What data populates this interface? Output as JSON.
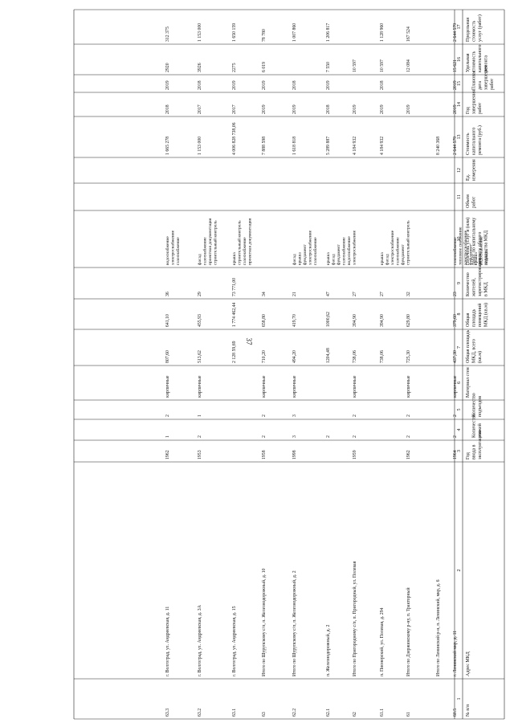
{
  "page_number": "37",
  "headers": [
    "№ п/п",
    "Адрес МКД",
    "Год ввода в эксплуатацию",
    "Количество этажей",
    "Количество подъездов",
    "Материал стен",
    "Общая площадь МКД, всего (кв.м)",
    "Общая площадь помещений МКД (кв.м)",
    "Количество жителей, зарегистрированных в МКД",
    "Перечень услуг и (или) работ по капитальному ремонту общего имущества МКД",
    "Объем работ",
    "Ед. измерения",
    "Стоимость капитального ремонта (руб.)",
    "Год завершения работ",
    "Плановая дата завершения работ",
    "Удельная стоимость капитального ремонта",
    "Предельная стоимость услуг (работ)"
  ],
  "col_numbers": [
    "1",
    "2",
    "3",
    "4",
    "5",
    "6",
    "7",
    "8",
    "9",
    "10",
    "11",
    "12",
    "13",
    "14",
    "15",
    "16",
    "17"
  ],
  "rows": [
    {
      "no": "60.5",
      "address": "г. Ленинский мкр, д. 11",
      "year": "1964",
      "floors": "2",
      "entr": "2",
      "wall": "кирпичные",
      "area": "437,30",
      "area2": "379,60",
      "people": "23",
      "works": "газоснабжение; тепловое снабжение; электроснабжение; фундамент; крыша; водоснабжение; подвалы",
      "vol": "",
      "unit": "",
      "cost": "2 644 579",
      "finish": "2019",
      "due": "2019",
      "spec": "15 621",
      "limit": "2 644 579"
    },
    {
      "no": "",
      "address": "Итого по Ленинский р-н, п. Ленинский, мкр, д. 6",
      "year": "",
      "floors": "",
      "entr": "",
      "wall": "",
      "area": "",
      "area2": "",
      "people": "",
      "works": "",
      "vol": "",
      "unit": "",
      "cost": "8 240 368",
      "finish": "",
      "due": "",
      "spec": "",
      "limit": ""
    },
    {
      "no": "61",
      "address": "Итого по Дзержинскому р-ну, п. Тракторный",
      "year": "1962",
      "floors": "2",
      "entr": "2",
      "wall": "кирпичные",
      "area": "725,30",
      "area2": "629,80",
      "people": "32",
      "works": "",
      "vol": "",
      "unit": "",
      "cost": "",
      "finish": "2019",
      "due": "",
      "spec": "12 084",
      "limit": "167 524"
    },
    {
      "no": "61.1",
      "address": "п. Пионерский, ул. Полевая, д. 294",
      "year": "",
      "floors": "",
      "entr": "",
      "wall": "",
      "area": "738,06",
      "area2": "394,90",
      "people": "27",
      "works": "крыша; фасад; электроснабжение; газоснабжение; фундамент; строительный контроль",
      "vol": "",
      "unit": "",
      "cost": "4 184 932",
      "finish": "2019",
      "due": "2018",
      "spec": "10 597",
      "limit": "1 128 960"
    },
    {
      "no": "62",
      "address": "Итого по Пригородному с/п, п. Пригородный, ул. Полевая",
      "year": "1959",
      "floors": "2",
      "entr": "2",
      "wall": "кирпичные",
      "area": "738,06",
      "area2": "394,90",
      "people": "27",
      "works": "",
      "vol": "",
      "unit": "",
      "cost": "4 184 932",
      "finish": "2019",
      "due": "",
      "spec": "10 597",
      "limit": ""
    },
    {
      "no": "62.1",
      "address": "п. Железнодорожный, д. 2",
      "year": "",
      "floors": "2",
      "entr": "",
      "wall": "",
      "area": "1204,48",
      "area2": "1000,62",
      "people": "47",
      "works": "крыша; фасад; фундамент; газоснабжение; водоснабжение; электроснабжение",
      "vol": "",
      "unit": "",
      "cost": "5 289 887",
      "finish": "2018",
      "due": "2019",
      "spec": "7 550",
      "limit": "1 206 817"
    },
    {
      "no": "62.2",
      "address": "Итого по Шурупскому с/п, п. Железнодорожный, д. 2",
      "year": "1998",
      "floors": "3",
      "entr": "3",
      "wall": "кирпичные",
      "area": "494,20",
      "area2": "419,70",
      "people": "21",
      "works": "фасад; крыша; фундамент; электроснабжение; газоснабжение",
      "vol": "",
      "unit": "",
      "cost": "1 618 818",
      "finish": "2019",
      "due": "2018",
      "spec": "",
      "limit": "1 007 860"
    },
    {
      "no": "63",
      "address": "Итого по Шурупскому с/п, п. Железнодорожный, д. 10",
      "year": "1958",
      "floors": "2",
      "entr": "2",
      "wall": "кирпичные",
      "area": "710,20",
      "area2": "658,80",
      "people": "34",
      "works": "",
      "vol": "",
      "unit": "",
      "cost": "7 888 598",
      "finish": "2019",
      "due": "2019",
      "spec": "6 019",
      "limit": "78 780"
    },
    {
      "no": "63.1",
      "address": "г. Волгоград, ул. Андреевская, д. 15",
      "year": "",
      "floors": "",
      "entr": "",
      "wall": "",
      "area": "2 128 59,69",
      "area2": "1 774 462,44",
      "people": "73 771,00",
      "works": "крыша; строительный контроль; газоснабжение; проектная документация",
      "vol": "",
      "unit": "",
      "cost": "4 006 828 738,06",
      "finish": "2017",
      "due": "2019",
      "spec": "2275",
      "limit": "1 650 159"
    },
    {
      "no": "63.2",
      "address": "г. Волгоград, ул. Андреевская, д. 3А",
      "year": "1953",
      "floors": "2",
      "entr": "1",
      "wall": "кирпичные",
      "area": "513,62",
      "area2": "455,93",
      "people": "29",
      "works": "фасад; газоснабжение; проектная документация; строительный контроль",
      "vol": "",
      "unit": "",
      "cost": "1 153 000",
      "finish": "2017",
      "due": "2018",
      "spec": "3926",
      "limit": "1 153 000"
    },
    {
      "no": "63.3",
      "address": "г. Волгоград, ул. Андреевская, д. 11",
      "year": "1962",
      "floors": "1",
      "entr": "2",
      "wall": "кирпичные",
      "area": "807,60",
      "area2": "641,10",
      "people": "36",
      "works": "водоснабжение; электроснабжение; газоснабжение",
      "vol": "",
      "unit": "",
      "cost": "1 665 278",
      "finish": "2018",
      "due": "2019",
      "spec": "2920",
      "limit": "312 375"
    }
  ]
}
